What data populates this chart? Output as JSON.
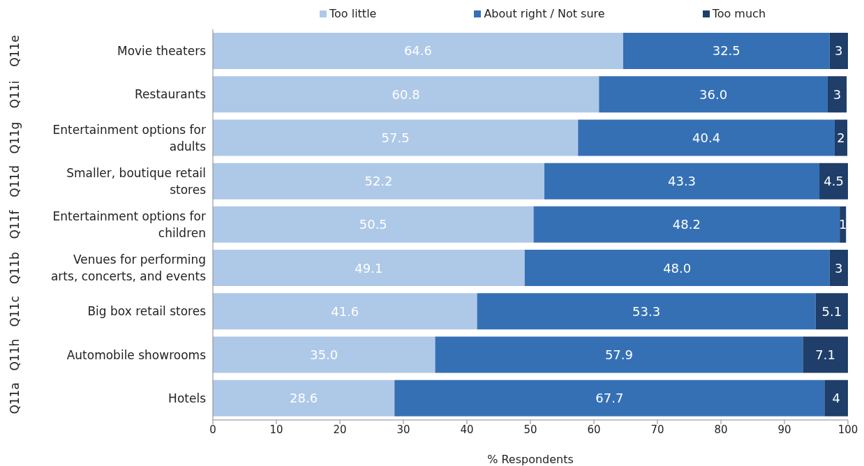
{
  "chart_data": {
    "type": "bar",
    "orientation": "horizontal",
    "stacked": true,
    "xlabel": "% Respondents",
    "legend": "top",
    "grid": false,
    "categories": [
      "Movie theaters",
      "Restaurants",
      "Entertainment options for adults",
      "Smaller, boutique retail stores",
      "Entertainment options for children",
      "Venues for performing arts, concerts, and events",
      "Big box retail stores",
      "Automobile showrooms",
      "Hotels"
    ],
    "annotations": [
      "Q11e",
      "Q11i",
      "Q11g",
      "Q11d",
      "Q11f",
      "Q11b",
      "Q11c",
      "Q11h",
      "Q11a"
    ],
    "xlim": [
      0,
      100
    ],
    "xticks": [
      0,
      10,
      20,
      30,
      40,
      50,
      60,
      70,
      80,
      90,
      100
    ],
    "series": [
      {
        "name": "Too little",
        "color": "#aec8e8",
        "values": [
          64.6,
          60.8,
          57.5,
          52.2,
          50.5,
          49.1,
          41.6,
          35.0,
          28.6
        ],
        "value_labels": [
          "64.6",
          "60.8",
          "57.5",
          "52.2",
          "50.5",
          "49.1",
          "41.6",
          "35.0",
          "28.6"
        ]
      },
      {
        "name": "About right / Not sure",
        "color": "#3570b5",
        "values": [
          32.5,
          36.0,
          40.4,
          43.3,
          48.2,
          48.0,
          53.3,
          57.9,
          67.7
        ],
        "value_labels": [
          "32.5",
          "36.0",
          "40.4",
          "43.3",
          "48.2",
          "48.0",
          "53.3",
          "57.9",
          "67.7"
        ]
      },
      {
        "name": "Too much",
        "color": "#1f3e6a",
        "values": [
          3,
          3,
          2,
          4.5,
          1,
          3,
          5.1,
          7.1,
          4
        ],
        "value_labels": [
          "3",
          "3",
          "2",
          "4.5",
          "1",
          "3",
          "5.1",
          "7.1",
          "4"
        ]
      }
    ]
  }
}
